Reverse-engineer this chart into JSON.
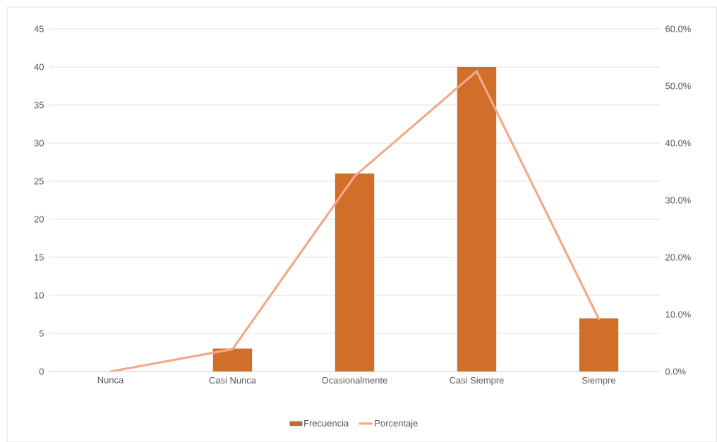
{
  "chart_data": {
    "type": "bar",
    "categories": [
      "Nunca",
      "Casi Nunca",
      "Ocasionalmente",
      "Casi Siempre",
      "Siempre"
    ],
    "series": [
      {
        "name": "Frecuencia",
        "color": "#d06e2a",
        "values": [
          0,
          3,
          26,
          40,
          7
        ]
      },
      {
        "name": "Porcentaje",
        "type": "line",
        "axis": "y2",
        "color": "#f2a98a",
        "values": [
          0,
          3.9,
          34.2,
          52.6,
          9.2
        ]
      }
    ],
    "ylim": [
      0,
      45
    ],
    "yticks": [
      0,
      5,
      10,
      15,
      20,
      25,
      30,
      35,
      40,
      45
    ],
    "y2lim": [
      0,
      60
    ],
    "y2ticks": [
      {
        "value": 0,
        "label": "0.0%"
      },
      {
        "value": 10,
        "label": "10.0%"
      },
      {
        "value": 20,
        "label": "20.0%"
      },
      {
        "value": 30,
        "label": "30.0%"
      },
      {
        "value": 40,
        "label": "40.0%"
      },
      {
        "value": 50,
        "label": "50.0%"
      },
      {
        "value": 60,
        "label": "60.0%"
      }
    ],
    "grid": "y",
    "legend": "bottom"
  }
}
